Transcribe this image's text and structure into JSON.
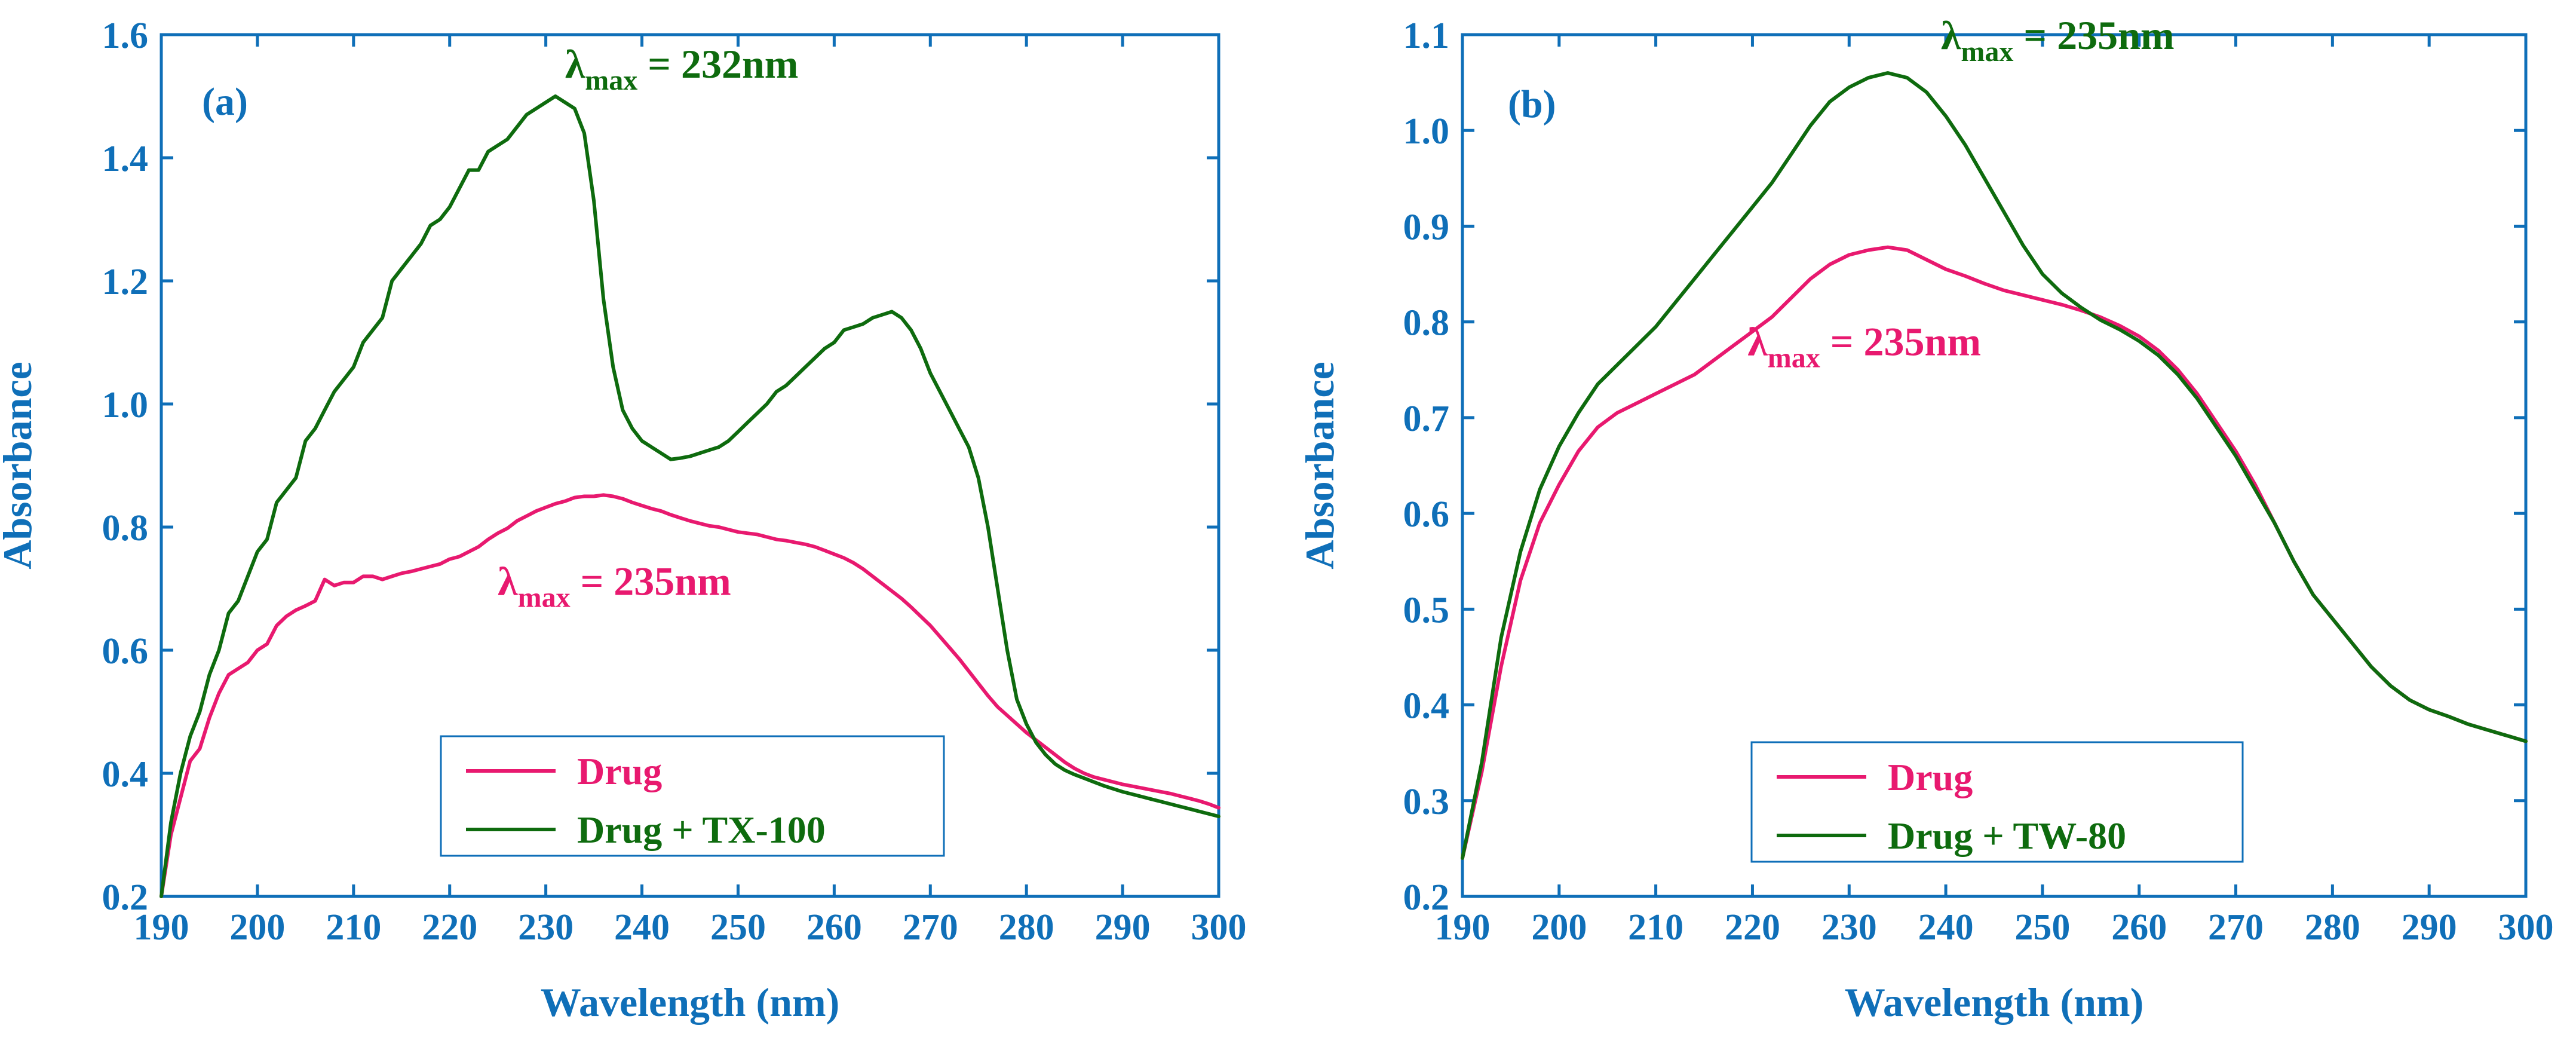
{
  "chart_data": [
    {
      "type": "line",
      "panel_label": "(a)",
      "xlabel": "Wavelength (nm)",
      "ylabel": "Absorbance",
      "xlim": [
        190,
        300
      ],
      "ylim": [
        0.2,
        1.6
      ],
      "xticks": [
        190,
        200,
        210,
        220,
        230,
        240,
        250,
        260,
        270,
        280,
        290,
        300
      ],
      "yticks": [
        0.2,
        0.4,
        0.6,
        0.8,
        1.0,
        1.2,
        1.4,
        1.6
      ],
      "legend_position": "bottom-center",
      "colors": {
        "axis": "#0F6FB8",
        "drug": "#E8196F",
        "mix": "#0E6B0E"
      },
      "series": [
        {
          "name": "Drug",
          "color": "#E8196F",
          "x": [
            190,
            191,
            192,
            193,
            194,
            195,
            196,
            197,
            198,
            199,
            200,
            201,
            202,
            203,
            204,
            205,
            206,
            207,
            208,
            209,
            210,
            211,
            212,
            213,
            214,
            215,
            216,
            217,
            218,
            219,
            220,
            221,
            222,
            223,
            224,
            225,
            226,
            227,
            228,
            229,
            230,
            231,
            232,
            233,
            234,
            235,
            236,
            237,
            238,
            239,
            240,
            241,
            242,
            243,
            244,
            245,
            246,
            247,
            248,
            249,
            250,
            251,
            252,
            253,
            254,
            255,
            256,
            257,
            258,
            259,
            260,
            261,
            262,
            263,
            264,
            265,
            266,
            267,
            268,
            269,
            270,
            271,
            272,
            273,
            274,
            275,
            276,
            277,
            278,
            279,
            280,
            281,
            282,
            283,
            284,
            285,
            286,
            287,
            288,
            289,
            290,
            291,
            292,
            293,
            294,
            295,
            296,
            297,
            298,
            299,
            300
          ],
          "y": [
            0.2,
            0.3,
            0.36,
            0.42,
            0.44,
            0.49,
            0.53,
            0.56,
            0.57,
            0.58,
            0.6,
            0.61,
            0.64,
            0.655,
            0.665,
            0.672,
            0.68,
            0.715,
            0.705,
            0.71,
            0.71,
            0.72,
            0.72,
            0.715,
            0.72,
            0.725,
            0.728,
            0.732,
            0.736,
            0.74,
            0.748,
            0.752,
            0.76,
            0.768,
            0.78,
            0.79,
            0.798,
            0.81,
            0.818,
            0.826,
            0.832,
            0.838,
            0.842,
            0.848,
            0.85,
            0.85,
            0.852,
            0.85,
            0.846,
            0.84,
            0.835,
            0.83,
            0.826,
            0.82,
            0.815,
            0.81,
            0.806,
            0.802,
            0.8,
            0.796,
            0.792,
            0.79,
            0.788,
            0.784,
            0.78,
            0.778,
            0.775,
            0.772,
            0.768,
            0.762,
            0.756,
            0.75,
            0.742,
            0.732,
            0.72,
            0.708,
            0.696,
            0.684,
            0.67,
            0.655,
            0.64,
            0.622,
            0.604,
            0.586,
            0.566,
            0.546,
            0.526,
            0.508,
            0.494,
            0.48,
            0.466,
            0.454,
            0.442,
            0.43,
            0.418,
            0.408,
            0.4,
            0.394,
            0.39,
            0.386,
            0.382,
            0.379,
            0.376,
            0.373,
            0.37,
            0.367,
            0.363,
            0.359,
            0.355,
            0.35,
            0.344
          ]
        },
        {
          "name": "Drug + TX-100",
          "color": "#0E6B0E",
          "x": [
            190,
            191,
            192,
            193,
            194,
            195,
            196,
            197,
            198,
            199,
            200,
            201,
            202,
            203,
            204,
            205,
            206,
            207,
            208,
            209,
            210,
            211,
            212,
            213,
            214,
            215,
            216,
            217,
            218,
            219,
            220,
            221,
            222,
            223,
            224,
            225,
            226,
            227,
            228,
            229,
            230,
            231,
            232,
            233,
            234,
            235,
            236,
            237,
            238,
            239,
            240,
            241,
            242,
            243,
            244,
            245,
            246,
            247,
            248,
            249,
            250,
            251,
            252,
            253,
            254,
            255,
            256,
            257,
            258,
            259,
            260,
            261,
            262,
            263,
            264,
            265,
            266,
            267,
            268,
            269,
            270,
            271,
            272,
            273,
            274,
            275,
            276,
            277,
            278,
            279,
            280,
            281,
            282,
            283,
            284,
            285,
            286,
            287,
            288,
            289,
            290,
            291,
            292,
            293,
            294,
            295,
            296,
            297,
            298,
            299,
            300
          ],
          "y": [
            0.2,
            0.32,
            0.4,
            0.46,
            0.5,
            0.56,
            0.6,
            0.66,
            0.68,
            0.72,
            0.76,
            0.78,
            0.84,
            0.86,
            0.88,
            0.94,
            0.96,
            0.99,
            1.02,
            1.04,
            1.06,
            1.1,
            1.12,
            1.14,
            1.2,
            1.22,
            1.24,
            1.26,
            1.29,
            1.3,
            1.32,
            1.35,
            1.38,
            1.38,
            1.41,
            1.42,
            1.43,
            1.45,
            1.47,
            1.48,
            1.49,
            1.5,
            1.49,
            1.48,
            1.44,
            1.33,
            1.17,
            1.06,
            0.99,
            0.96,
            0.94,
            0.93,
            0.92,
            0.91,
            0.912,
            0.915,
            0.92,
            0.925,
            0.93,
            0.94,
            0.955,
            0.97,
            0.985,
            1.0,
            1.02,
            1.03,
            1.045,
            1.06,
            1.075,
            1.09,
            1.1,
            1.12,
            1.125,
            1.13,
            1.14,
            1.145,
            1.15,
            1.14,
            1.12,
            1.09,
            1.05,
            1.02,
            0.99,
            0.96,
            0.93,
            0.88,
            0.8,
            0.7,
            0.6,
            0.52,
            0.48,
            0.45,
            0.43,
            0.415,
            0.405,
            0.398,
            0.392,
            0.386,
            0.38,
            0.375,
            0.37,
            0.366,
            0.362,
            0.358,
            0.354,
            0.35,
            0.346,
            0.342,
            0.338,
            0.334,
            0.33
          ]
        }
      ],
      "annotations": [
        {
          "symbol": "λ",
          "sub": "max",
          "text": " = 232nm",
          "series": "Drug + TX-100",
          "at": [
            232,
            1.53
          ]
        },
        {
          "symbol": "λ",
          "sub": "max",
          "text": " = 235nm",
          "series": "Drug",
          "at": [
            225,
            0.69
          ]
        }
      ]
    },
    {
      "type": "line",
      "panel_label": "(b)",
      "xlabel": "Wavelength (nm)",
      "ylabel": "Absorbance",
      "xlim": [
        190,
        300
      ],
      "ylim": [
        0.2,
        1.1
      ],
      "xticks": [
        190,
        200,
        210,
        220,
        230,
        240,
        250,
        260,
        270,
        280,
        290,
        300
      ],
      "yticks": [
        0.2,
        0.3,
        0.4,
        0.5,
        0.6,
        0.7,
        0.8,
        0.9,
        1.0,
        1.1
      ],
      "legend_position": "bottom-center",
      "colors": {
        "axis": "#0F6FB8",
        "drug": "#E8196F",
        "mix": "#0E6B0E"
      },
      "series": [
        {
          "name": "Drug",
          "color": "#E8196F",
          "x": [
            190,
            192,
            194,
            196,
            198,
            200,
            202,
            204,
            206,
            208,
            210,
            212,
            214,
            216,
            218,
            220,
            222,
            224,
            226,
            228,
            230,
            232,
            234,
            236,
            238,
            240,
            242,
            244,
            246,
            248,
            250,
            252,
            254,
            256,
            258,
            260,
            262,
            264,
            266,
            268,
            270,
            272,
            274,
            276,
            278,
            280,
            282,
            284,
            286,
            288,
            290,
            292,
            294,
            296,
            298,
            300
          ],
          "y": [
            0.24,
            0.33,
            0.44,
            0.53,
            0.59,
            0.63,
            0.665,
            0.69,
            0.705,
            0.715,
            0.725,
            0.735,
            0.745,
            0.76,
            0.775,
            0.79,
            0.805,
            0.825,
            0.845,
            0.86,
            0.87,
            0.875,
            0.878,
            0.875,
            0.865,
            0.855,
            0.848,
            0.84,
            0.833,
            0.828,
            0.823,
            0.818,
            0.812,
            0.805,
            0.796,
            0.785,
            0.77,
            0.75,
            0.725,
            0.695,
            0.665,
            0.63,
            0.59,
            0.55,
            0.515,
            0.49,
            0.465,
            0.44,
            0.42,
            0.405,
            0.395,
            0.388,
            0.38,
            0.374,
            0.368,
            0.362
          ]
        },
        {
          "name": "Drug + TW-80",
          "color": "#0E6B0E",
          "x": [
            190,
            192,
            194,
            196,
            198,
            200,
            202,
            204,
            206,
            208,
            210,
            212,
            214,
            216,
            218,
            220,
            222,
            224,
            226,
            228,
            230,
            232,
            234,
            236,
            238,
            240,
            242,
            244,
            246,
            248,
            250,
            252,
            254,
            256,
            258,
            260,
            262,
            264,
            266,
            268,
            270,
            272,
            274,
            276,
            278,
            280,
            282,
            284,
            286,
            288,
            290,
            292,
            294,
            296,
            298,
            300
          ],
          "y": [
            0.24,
            0.34,
            0.47,
            0.56,
            0.625,
            0.67,
            0.705,
            0.735,
            0.755,
            0.775,
            0.795,
            0.82,
            0.845,
            0.87,
            0.895,
            0.92,
            0.945,
            0.975,
            1.005,
            1.03,
            1.045,
            1.055,
            1.06,
            1.055,
            1.04,
            1.015,
            0.985,
            0.95,
            0.915,
            0.88,
            0.85,
            0.83,
            0.815,
            0.802,
            0.792,
            0.78,
            0.765,
            0.745,
            0.72,
            0.69,
            0.66,
            0.625,
            0.59,
            0.55,
            0.515,
            0.49,
            0.465,
            0.44,
            0.42,
            0.405,
            0.395,
            0.388,
            0.38,
            0.374,
            0.368,
            0.362
          ]
        }
      ],
      "annotations": [
        {
          "symbol": "λ",
          "sub": "max",
          "text": " = 235nm",
          "series": "Drug + TW-80",
          "at": [
            239.5,
            1.085
          ]
        },
        {
          "symbol": "λ",
          "sub": "max",
          "text": " = 235nm",
          "series": "Drug",
          "at": [
            219.5,
            0.765
          ]
        }
      ]
    }
  ]
}
